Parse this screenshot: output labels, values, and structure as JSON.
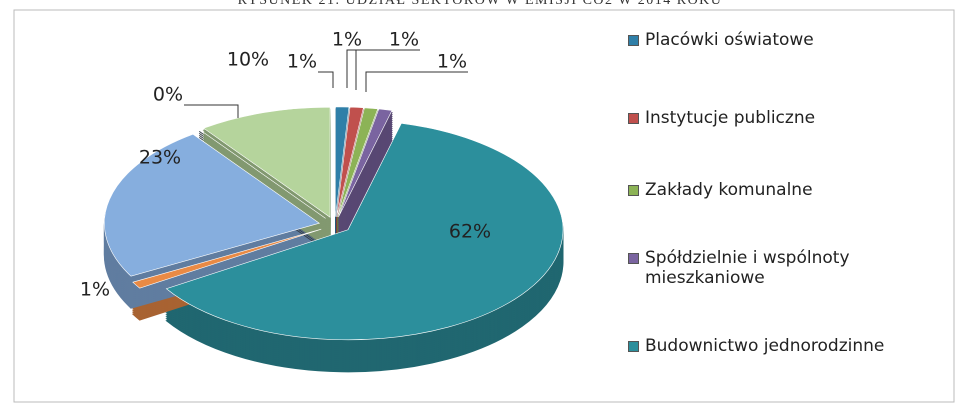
{
  "chart_data": {
    "type": "pie",
    "title": "RYSUNEK 21. UDZIAŁ SEKTORÓW W EMISJI CO2 W 2014 ROKU",
    "categories": [
      "Placówki oświatowe",
      "Instytucje publiczne",
      "Zakłady komunalne",
      "Spółdzielnie i wspólnoty mieszkaniowe",
      "Budownictwo jednorodzinne",
      null,
      null,
      null,
      null
    ],
    "values": [
      1,
      1,
      1,
      1,
      62,
      1,
      23,
      0,
      10
    ],
    "value_labels": [
      "1%",
      "1%",
      "1%",
      "1%",
      "62%",
      "1%",
      "23%",
      "0%",
      "10%"
    ],
    "colors": [
      "#2f7fa8",
      "#c0504d",
      "#8cb356",
      "#7a64a0",
      "#2c8f9c",
      "#e98a45",
      "#86aede",
      "#4d5763",
      "#b5d49c"
    ],
    "legend": "right"
  }
}
